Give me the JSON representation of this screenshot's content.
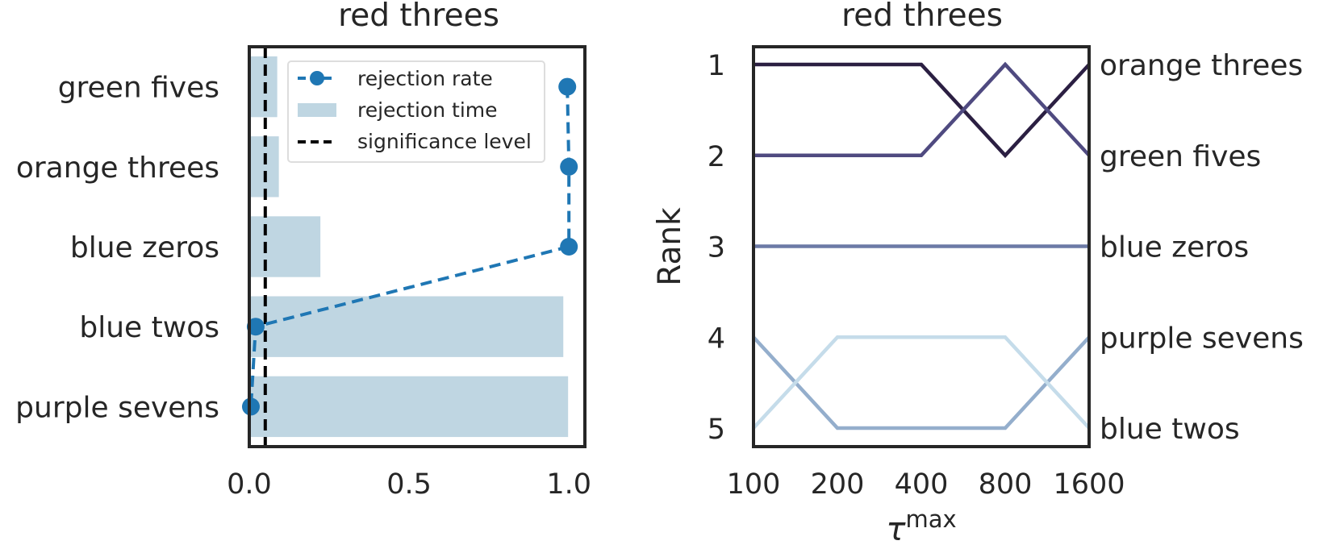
{
  "chart_data": [
    {
      "type": "bar",
      "orientation": "horizontal",
      "title": "red threes",
      "categories": [
        "green fives",
        "orange threes",
        "blue zeros",
        "blue twos",
        "purple sevens"
      ],
      "series": [
        {
          "name": "rejection time",
          "chart_type": "bar",
          "values": [
            0.09,
            0.095,
            0.225,
            0.985,
            1.0
          ],
          "color": "#bfd6e2"
        },
        {
          "name": "rejection rate",
          "chart_type": "line",
          "style": "dashed-markers",
          "values": [
            0.995,
            1.0,
            1.0,
            0.02,
            0.005
          ],
          "color": "#1f77b4"
        }
      ],
      "reference_lines": [
        {
          "name": "significance level",
          "x": 0.05,
          "color": "#000000",
          "style": "dashed"
        }
      ],
      "xlim": [
        0.0,
        1.05
      ],
      "x_ticks": [
        0.0,
        0.5,
        1.0
      ],
      "x_tick_labels": [
        "0.0",
        "0.5",
        "1.0"
      ],
      "legend_position": "top-right",
      "grid": false
    },
    {
      "type": "line",
      "title": "red threes",
      "ylabel": "Rank",
      "xlabel_base": "τ",
      "xlabel_sup": "max",
      "x": [
        "100",
        "200",
        "400",
        "800",
        "1600"
      ],
      "x_scale": "log2",
      "y_ticks": [
        1,
        2,
        3,
        4,
        5
      ],
      "y_tick_labels": [
        "1",
        "2",
        "3",
        "4",
        "5"
      ],
      "ylim": [
        5,
        1
      ],
      "series": [
        {
          "name": "orange threes",
          "values": [
            1,
            1,
            1,
            2,
            1
          ],
          "color": "#2b1f42"
        },
        {
          "name": "green fives",
          "values": [
            2,
            2,
            2,
            1,
            2
          ],
          "color": "#4f4a80"
        },
        {
          "name": "blue zeros",
          "values": [
            3,
            3,
            3,
            3,
            3
          ],
          "color": "#6c7aa6"
        },
        {
          "name": "purple sevens",
          "values": [
            4,
            5,
            5,
            5,
            4
          ],
          "color": "#94aecc"
        },
        {
          "name": "blue twos",
          "values": [
            5,
            4,
            4,
            4,
            5
          ],
          "color": "#c5dcea"
        }
      ],
      "end_labels": [
        "orange threes",
        "green fives",
        "blue zeros",
        "purple sevens",
        "blue twos"
      ],
      "grid": false
    }
  ]
}
